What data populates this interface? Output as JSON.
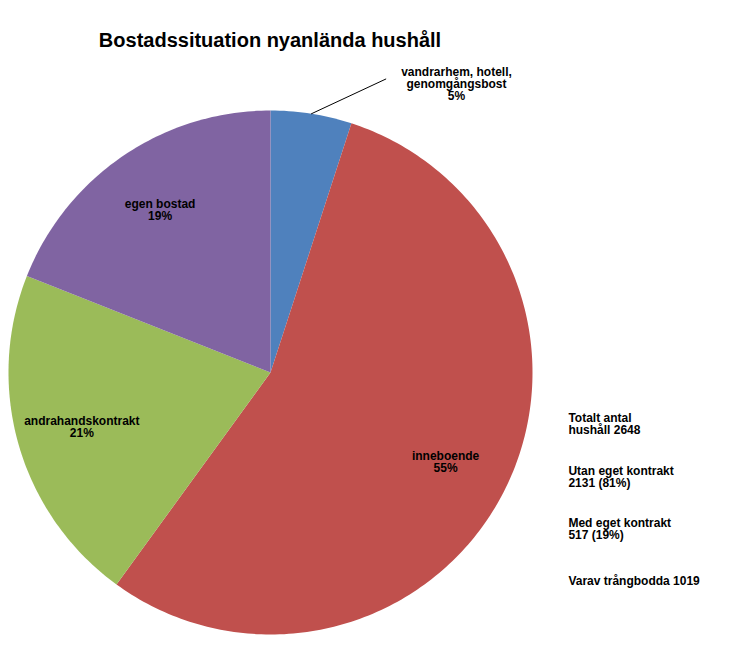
{
  "chart_data": {
    "type": "pie",
    "title": "Bostadssituation nyanlända hushåll",
    "categories": [
      "vandrarhem, hotell, genomgångsbost",
      "inneboende",
      "andrahandskontrakt",
      "egen bostad"
    ],
    "values": [
      5,
      55,
      21,
      19
    ],
    "value_labels": [
      "5%",
      "55%",
      "21%",
      "19%"
    ],
    "colors": [
      "#4F81BD",
      "#C0504D",
      "#9BBB59",
      "#8064A2"
    ],
    "data_labels": true,
    "annotations": [
      "Totalt antal\nhushåll 2648",
      "Utan eget kontrakt\n2131 (81%)",
      "Med eget kontrakt\n517 (19%)",
      "Varav trångbodda 1019"
    ]
  }
}
